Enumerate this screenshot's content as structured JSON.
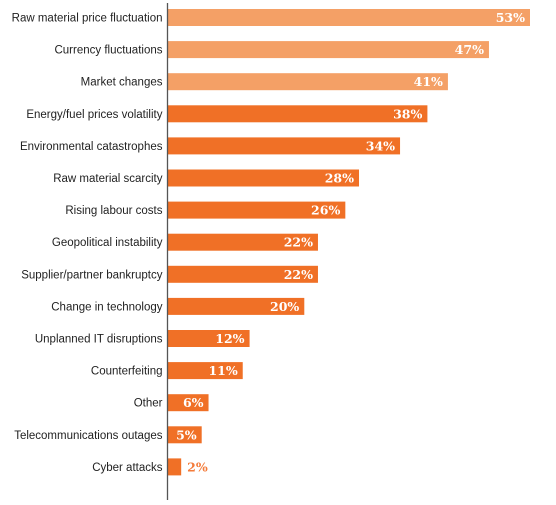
{
  "chart_data": {
    "type": "bar",
    "orientation": "horizontal",
    "categories": [
      "Raw material price fluctuation",
      "Currency fluctuations",
      "Market changes",
      "Energy/fuel prices volatility",
      "Environmental catastrophes",
      "Raw material scarcity",
      "Rising labour costs",
      "Geopolitical instability",
      "Supplier/partner bankruptcy",
      "Change in technology",
      "Unplanned IT disruptions",
      "Counterfeiting",
      "Other",
      "Telecommunications outages",
      "Cyber attacks"
    ],
    "values": [
      53,
      47,
      41,
      38,
      34,
      28,
      26,
      22,
      22,
      20,
      12,
      11,
      6,
      5,
      2
    ],
    "value_labels": [
      "53%",
      "47%",
      "41%",
      "38%",
      "34%",
      "28%",
      "26%",
      "22%",
      "22%",
      "20%",
      "12%",
      "11%",
      "6%",
      "5%",
      "2%"
    ],
    "xlim": [
      0,
      53
    ],
    "grid": false,
    "highlight_count": 3,
    "colors": {
      "highlight": "#f4a066",
      "bar": "#f07026",
      "outside_label": "#f47b3a",
      "axis": "#555555"
    }
  }
}
